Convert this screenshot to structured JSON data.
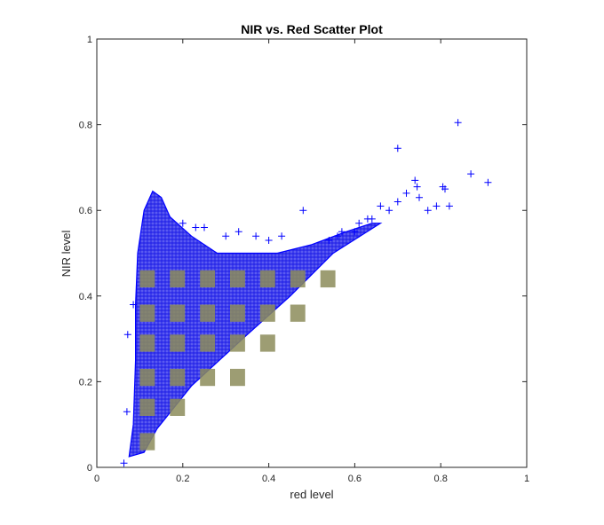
{
  "chart_data": {
    "type": "scatter",
    "title": "NIR vs. Red Scatter Plot",
    "xlabel": "red level",
    "ylabel": "NIR level",
    "xlim": [
      0,
      1
    ],
    "ylim": [
      0,
      1
    ],
    "xticks": [
      "0",
      "0.2",
      "0.4",
      "0.6",
      "0.8",
      "1"
    ],
    "yticks": [
      "0",
      "0.2",
      "0.4",
      "0.6",
      "0.8",
      "1"
    ],
    "marker": "+",
    "marker_color": "#0000ff",
    "grid": false,
    "series": [
      {
        "description": "dense cloud bounded by these vertices (red, NIR)",
        "region": [
          [
            0.075,
            0.025
          ],
          [
            0.085,
            0.1
          ],
          [
            0.09,
            0.25
          ],
          [
            0.09,
            0.38
          ],
          [
            0.095,
            0.5
          ],
          [
            0.11,
            0.6
          ],
          [
            0.13,
            0.645
          ],
          [
            0.15,
            0.63
          ],
          [
            0.17,
            0.585
          ],
          [
            0.22,
            0.54
          ],
          [
            0.28,
            0.5
          ],
          [
            0.35,
            0.5
          ],
          [
            0.42,
            0.5
          ],
          [
            0.5,
            0.52
          ],
          [
            0.58,
            0.55
          ],
          [
            0.64,
            0.57
          ],
          [
            0.66,
            0.57
          ],
          [
            0.55,
            0.5
          ],
          [
            0.45,
            0.4
          ],
          [
            0.35,
            0.31
          ],
          [
            0.22,
            0.19
          ],
          [
            0.14,
            0.09
          ],
          [
            0.11,
            0.035
          ]
        ]
      },
      {
        "description": "sparse outlier points",
        "x": [
          0.063,
          0.072,
          0.085,
          0.07,
          0.48,
          0.7,
          0.74,
          0.745,
          0.79,
          0.805,
          0.81,
          0.82,
          0.84,
          0.87,
          0.91,
          0.7,
          0.72,
          0.75,
          0.77,
          0.68,
          0.66,
          0.64,
          0.63,
          0.61,
          0.6,
          0.57,
          0.56,
          0.54,
          0.25,
          0.3,
          0.33,
          0.37,
          0.4,
          0.43,
          0.23,
          0.2
        ],
        "y": [
          0.01,
          0.31,
          0.38,
          0.13,
          0.6,
          0.745,
          0.67,
          0.655,
          0.61,
          0.655,
          0.65,
          0.61,
          0.805,
          0.685,
          0.665,
          0.62,
          0.64,
          0.63,
          0.6,
          0.6,
          0.61,
          0.58,
          0.58,
          0.57,
          0.55,
          0.55,
          0.54,
          0.53,
          0.56,
          0.54,
          0.55,
          0.54,
          0.53,
          0.54,
          0.56,
          0.57
        ]
      }
    ],
    "checker_blocks": [
      [
        0.1,
        0.46
      ],
      [
        0.17,
        0.46
      ],
      [
        0.24,
        0.46
      ],
      [
        0.31,
        0.46
      ],
      [
        0.38,
        0.46
      ],
      [
        0.45,
        0.46
      ],
      [
        0.52,
        0.46
      ],
      [
        0.1,
        0.38
      ],
      [
        0.17,
        0.38
      ],
      [
        0.24,
        0.38
      ],
      [
        0.31,
        0.38
      ],
      [
        0.38,
        0.38
      ],
      [
        0.45,
        0.38
      ],
      [
        0.1,
        0.31
      ],
      [
        0.17,
        0.31
      ],
      [
        0.24,
        0.31
      ],
      [
        0.31,
        0.31
      ],
      [
        0.38,
        0.31
      ],
      [
        0.1,
        0.23
      ],
      [
        0.17,
        0.23
      ],
      [
        0.24,
        0.23
      ],
      [
        0.31,
        0.23
      ],
      [
        0.1,
        0.16
      ],
      [
        0.17,
        0.16
      ],
      [
        0.1,
        0.08
      ]
    ],
    "checker_color": "#8c8c5a"
  }
}
